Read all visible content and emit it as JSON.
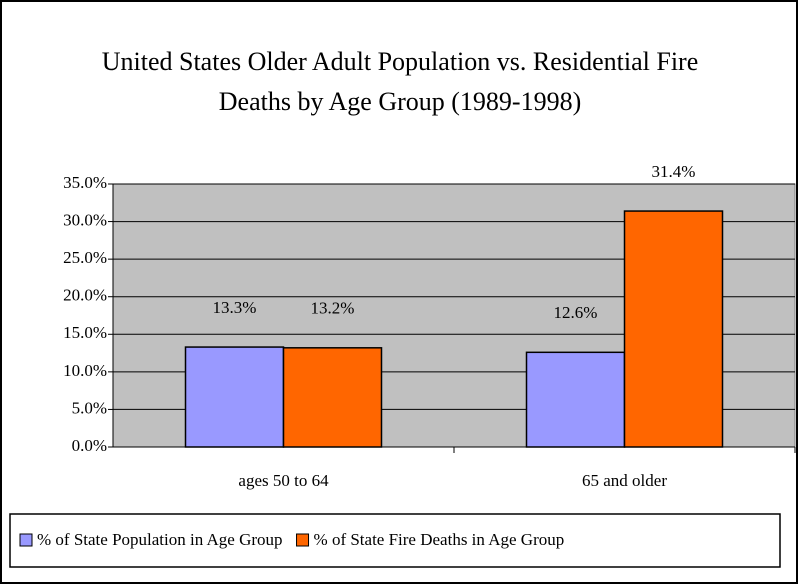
{
  "chart_data": {
    "type": "bar",
    "title": "United States Older Adult Population vs. Residential Fire Deaths by Age Group (1989-1998)",
    "categories": [
      "ages 50 to 64",
      "65 and older"
    ],
    "series": [
      {
        "name": "% of State Population in Age Group",
        "color": "#9999ff",
        "values": [
          13.3,
          12.6
        ],
        "value_labels": [
          "13.3%",
          "12.6%"
        ]
      },
      {
        "name": "% of State Fire Deaths in Age Group",
        "color": "#ff6600",
        "values": [
          13.2,
          31.4
        ],
        "value_labels": [
          "13.2%",
          "31.4%"
        ]
      }
    ],
    "ylim": [
      0,
      35
    ],
    "yticks": [
      {
        "value": 0,
        "label": "0.0%"
      },
      {
        "value": 5,
        "label": "5.0%"
      },
      {
        "value": 10,
        "label": "10.0%"
      },
      {
        "value": 15,
        "label": "15.0%"
      },
      {
        "value": 20,
        "label": "20.0%"
      },
      {
        "value": 25,
        "label": "25.0%"
      },
      {
        "value": 30,
        "label": "30.0%"
      },
      {
        "value": 35,
        "label": "35.0%"
      }
    ],
    "grid": true,
    "legend": "bottom"
  }
}
